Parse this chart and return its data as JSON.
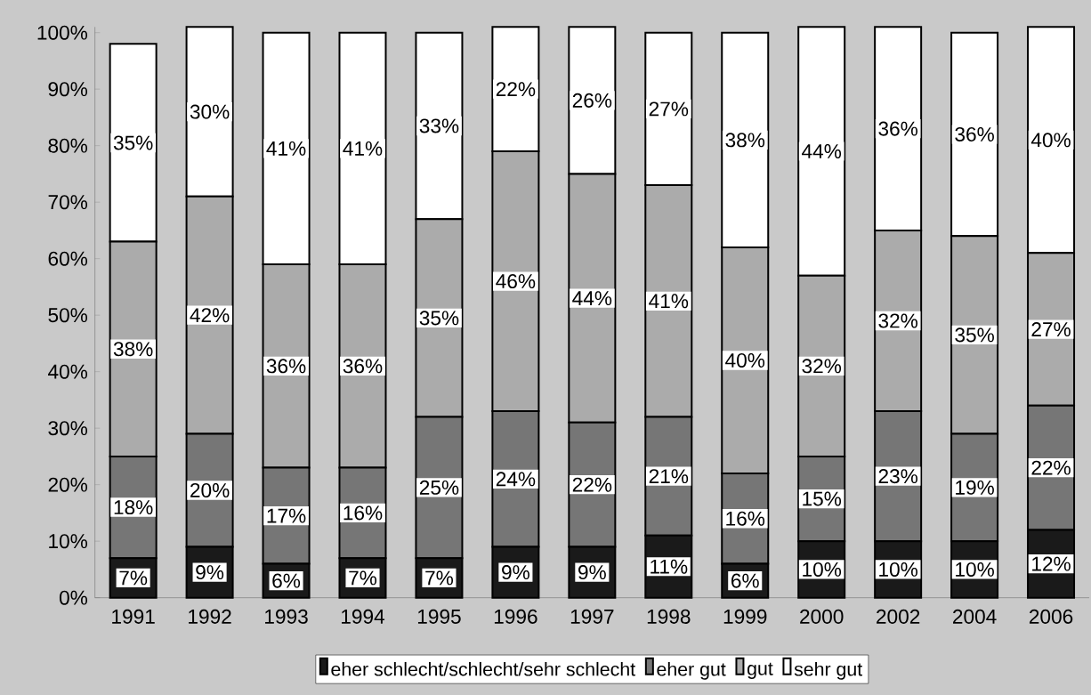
{
  "chart_data": {
    "type": "bar",
    "stacked": true,
    "categories": [
      "1991",
      "1992",
      "1993",
      "1994",
      "1995",
      "1996",
      "1997",
      "1998",
      "1999",
      "2000",
      "2002",
      "2004",
      "2006"
    ],
    "series": [
      {
        "name": "eher schlecht/schlecht/sehr schlecht",
        "color": "#1a1a1a",
        "values": [
          7,
          9,
          6,
          7,
          7,
          9,
          9,
          11,
          6,
          10,
          10,
          10,
          12
        ],
        "value_labels": [
          "7%",
          "9%",
          "6%",
          "7%",
          "7%",
          "9%",
          "9%",
          "11%",
          "6%",
          "10%",
          "10%",
          "10%",
          "12%"
        ]
      },
      {
        "name": "eher gut",
        "color": "#767676",
        "values": [
          18,
          20,
          17,
          16,
          25,
          24,
          22,
          21,
          16,
          15,
          23,
          19,
          22
        ],
        "value_labels": [
          "18%",
          "20%",
          "17%",
          "16%",
          "25%",
          "24%",
          "22%",
          "21%",
          "16%",
          "15%",
          "23%",
          "19%",
          "22%"
        ]
      },
      {
        "name": "gut",
        "color": "#ababab",
        "values": [
          38,
          42,
          36,
          36,
          35,
          46,
          44,
          41,
          40,
          32,
          32,
          35,
          27
        ],
        "value_labels": [
          "38%",
          "42%",
          "36%",
          "36%",
          "35%",
          "46%",
          "44%",
          "41%",
          "40%",
          "32%",
          "32%",
          "35%",
          "27%"
        ]
      },
      {
        "name": "sehr gut",
        "color": "#ffffff",
        "values": [
          35,
          30,
          41,
          41,
          33,
          22,
          26,
          27,
          38,
          44,
          36,
          36,
          40
        ],
        "value_labels": [
          "35%",
          "30%",
          "41%",
          "41%",
          "33%",
          "22%",
          "26%",
          "27%",
          "38%",
          "44%",
          "36%",
          "36%",
          "40%"
        ]
      }
    ],
    "ylim": [
      0,
      101
    ],
    "yticks": [
      {
        "value": 0,
        "label": "0%"
      },
      {
        "value": 10,
        "label": "10%"
      },
      {
        "value": 20,
        "label": "20%"
      },
      {
        "value": 30,
        "label": "30%"
      },
      {
        "value": 40,
        "label": "40%"
      },
      {
        "value": 50,
        "label": "50%"
      },
      {
        "value": 60,
        "label": "60%"
      },
      {
        "value": 70,
        "label": "70%"
      },
      {
        "value": 80,
        "label": "80%"
      },
      {
        "value": 90,
        "label": "90%"
      },
      {
        "value": 100,
        "label": "100%"
      }
    ],
    "legend": "bottom",
    "grid": false
  }
}
